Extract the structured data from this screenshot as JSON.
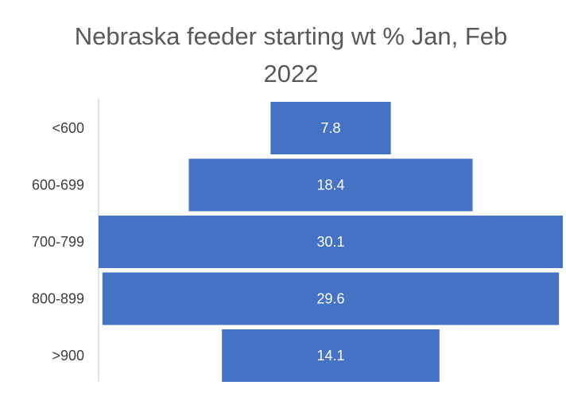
{
  "chart_data": {
    "type": "funnel",
    "title": "Nebraska feeder starting wt % Jan, Feb 2022",
    "categories": [
      "<600",
      "600-699",
      "700-799",
      "800-899",
      ">900"
    ],
    "values": [
      7.8,
      18.4,
      30.1,
      29.6,
      14.1
    ],
    "color": "#4472c4"
  }
}
